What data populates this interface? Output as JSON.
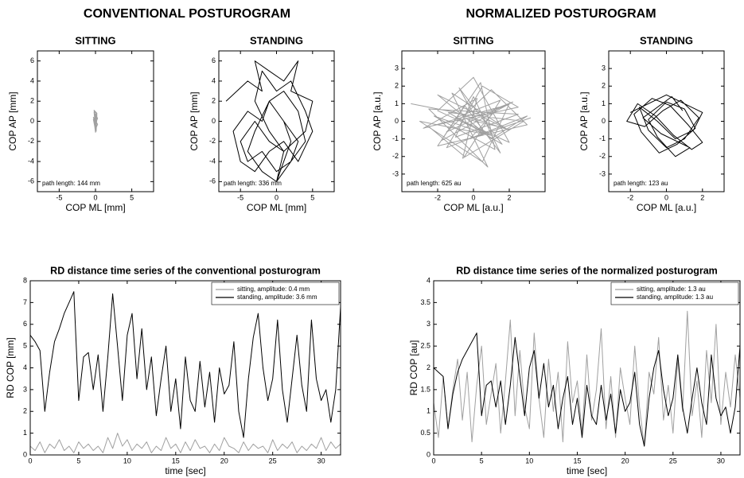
{
  "headers": [
    "CONVENTIONAL POSTUROGRAM",
    "NORMALIZED POSTUROGRAM"
  ],
  "chart_data": [
    {
      "type": "line",
      "title": "SITTING",
      "x_label": "COP ML [mm]",
      "y_label": "COP AP [mm]",
      "annotation": "path length: 144 mm",
      "color": "#a0a0a0",
      "x": [
        0,
        0.1,
        -0.1,
        0.2,
        -0.2,
        0.1,
        0,
        -0.3,
        0.2,
        0.1,
        -0.1,
        0.3,
        -0.2,
        0,
        0.1,
        -0.2,
        0.2,
        -0.1,
        0,
        0.3,
        -0.3,
        0.1,
        -0.1,
        0.2,
        0,
        -0.2,
        0.1,
        0,
        -0.1,
        0.2
      ],
      "values": [
        0,
        0.5,
        -0.3,
        0.8,
        1.1,
        -0.6,
        -0.9,
        0.2,
        0.6,
        -1.0,
        -0.4,
        0.3,
        0.9,
        -0.7,
        0.1,
        -0.2,
        0.7,
        1.0,
        -0.8,
        -0.3,
        0.4,
        -0.5,
        0.6,
        0.2,
        -1.1,
        0.0,
        0.8,
        -0.6,
        0.3,
        -0.1
      ],
      "xlim": [
        -8,
        8
      ],
      "xticks": [
        -5,
        0,
        5
      ],
      "ylim": [
        -7,
        7
      ],
      "yticks": [
        -6,
        -4,
        -2,
        0,
        2,
        4,
        6
      ]
    },
    {
      "type": "line",
      "title": "STANDING",
      "x_label": "COP ML [mm]",
      "y_label": "COP AP [mm]",
      "annotation": "path length: 336 mm",
      "color": "#000000",
      "x": [
        -7,
        -4,
        -2,
        -3,
        -1,
        1,
        3,
        2,
        5,
        4,
        1,
        -1,
        -3,
        -5,
        -4,
        -2,
        0,
        2,
        4,
        3,
        1,
        -1,
        -2,
        -4,
        -6,
        -5,
        -3,
        -1,
        1,
        3,
        5,
        4,
        2,
        0,
        -2,
        -3,
        -1,
        1,
        0,
        2,
        3,
        1,
        -1,
        -3,
        -4,
        -2,
        0,
        1,
        2,
        1
      ],
      "values": [
        2,
        4,
        3,
        6,
        5,
        4,
        6,
        3,
        2,
        -1,
        -3,
        -2,
        0,
        -2,
        -4,
        -3,
        -5,
        -4,
        -2,
        1,
        3,
        2,
        0,
        1,
        -1,
        -4,
        -5,
        -3,
        -2,
        -4,
        -1,
        1,
        4,
        3,
        5,
        2,
        -1,
        -3,
        -6,
        -4,
        -2,
        0,
        2,
        -1,
        -3,
        -5,
        -6,
        -4,
        -2,
        0
      ],
      "xlim": [
        -8,
        8
      ],
      "xticks": [
        -5,
        0,
        5
      ],
      "ylim": [
        -7,
        7
      ],
      "yticks": [
        -6,
        -4,
        -2,
        0,
        2,
        4,
        6
      ]
    },
    {
      "type": "line",
      "title": "SITTING",
      "x_label": "COP ML [a.u.]",
      "y_label": "COP AP [a.u.]",
      "annotation": "path length: 625 au",
      "color": "#a0a0a0",
      "x": [
        -3.5,
        -1,
        2,
        -2,
        1,
        3,
        -1.5,
        0.5,
        2.5,
        -2.5,
        -0.5,
        1.5,
        -1,
        2,
        0,
        -2,
        1,
        -3,
        0.5,
        2,
        -1.5,
        1,
        3,
        -2,
        -0.5,
        1.5,
        0,
        -1,
        2.5,
        -2.5,
        0.8,
        -1.2,
        1.8,
        -0.3,
        2.2,
        -1.8,
        0.4,
        1.2,
        -2.2,
        0.6,
        -0.8,
        1.6,
        -1.4,
        2.8,
        -0.6,
        0.2,
        -2.8,
        1.4,
        -0.2,
        3.2
      ],
      "values": [
        1,
        0.5,
        -0.5,
        1.5,
        -1,
        0.3,
        -1.5,
        2,
        0.8,
        -0.3,
        -2,
        1.2,
        0.2,
        -1.2,
        2.5,
        0.6,
        -0.8,
        0,
        -2.3,
        1,
        -0.6,
        1.8,
        -0.2,
        -1.4,
        0.9,
        -1.8,
        1.4,
        -0.9,
        0.4,
        0.7,
        -2.6,
        1.6,
        -0.4,
        0.1,
        1.1,
        -1.1,
        2.2,
        -1.6,
        0.3,
        -0.7,
        1.9,
        -1.3,
        0.5,
        0,
        -2.1,
        1.3,
        -0.4,
        0.8,
        -1,
        0.2
      ],
      "xlim": [
        -4,
        4
      ],
      "xticks": [
        -2,
        0,
        2
      ],
      "ylim": [
        -4,
        4
      ],
      "yticks": [
        -3,
        -2,
        -1,
        0,
        1,
        2,
        3
      ]
    },
    {
      "type": "line",
      "title": "STANDING",
      "x_label": "COP ML [a.u.]",
      "y_label": "COP AP [a.u.]",
      "annotation": "path length: 123 au",
      "color": "#000000",
      "x": [
        -2,
        -1,
        0,
        1,
        2,
        1.5,
        0.5,
        -0.5,
        -1.5,
        -1,
        0,
        1,
        1.8,
        0.8,
        -0.2,
        -1.2,
        -2.2,
        -1.6,
        -0.6,
        0.4,
        1.4,
        2,
        1.2,
        0.2,
        -0.8,
        -1.8,
        -1.4,
        -0.4,
        0.6,
        1.6,
        1,
        0,
        -1,
        -0.5,
        0.5,
        1.3,
        -0.3,
        -1.3,
        0.3,
        0.9
      ],
      "values": [
        0.5,
        1,
        1.5,
        1,
        0.5,
        -0.5,
        -1,
        0,
        0.8,
        -0.5,
        -1.5,
        -1,
        0.2,
        1.2,
        0.6,
        -0.3,
        0,
        1,
        0.3,
        -0.8,
        -1.6,
        -1.2,
        -0.2,
        0.9,
        1.3,
        0.4,
        -0.6,
        -1.8,
        -1.3,
        -0.4,
        0.7,
        1.1,
        0.1,
        -0.9,
        -2,
        -1.5,
        -0.7,
        0.2,
        1.4,
        0.6
      ],
      "xlim": [
        -3.2,
        3.2
      ],
      "xticks": [
        -2,
        0,
        2
      ],
      "ylim": [
        -4,
        4
      ],
      "yticks": [
        -3,
        -2,
        -1,
        0,
        1,
        2,
        3
      ]
    },
    {
      "type": "line",
      "title": "RD distance time series of the conventional posturogram",
      "x_label": "time [sec]",
      "y_label": "RD COP [mm]",
      "legend": "upper right",
      "x": [
        0,
        0.5,
        1,
        1.5,
        2,
        2.5,
        3,
        3.5,
        4,
        4.5,
        5,
        5.5,
        6,
        6.5,
        7,
        7.5,
        8,
        8.5,
        9,
        9.5,
        10,
        10.5,
        11,
        11.5,
        12,
        12.5,
        13,
        13.5,
        14,
        14.5,
        15,
        15.5,
        16,
        16.5,
        17,
        17.5,
        18,
        18.5,
        19,
        19.5,
        20,
        20.5,
        21,
        21.5,
        22,
        22.5,
        23,
        23.5,
        24,
        24.5,
        25,
        25.5,
        26,
        26.5,
        27,
        27.5,
        28,
        28.5,
        29,
        29.5,
        30,
        30.5,
        31,
        31.5,
        32
      ],
      "series": [
        {
          "name": "sitting, amplitude: 0.4 mm",
          "color": "#a0a0a0",
          "values": [
            0.4,
            0.2,
            0.6,
            0.1,
            0.5,
            0.3,
            0.7,
            0.2,
            0.4,
            0.1,
            0.6,
            0.3,
            0.5,
            0.2,
            0.4,
            0.1,
            0.8,
            0.3,
            1,
            0.4,
            0.7,
            0.2,
            0.5,
            0.3,
            0.6,
            0.1,
            0.4,
            0.2,
            0.8,
            0.3,
            0.5,
            0.1,
            0.6,
            0.2,
            0.7,
            0.3,
            0.4,
            0.1,
            0.5,
            0.2,
            0.8,
            0.4,
            0.3,
            0.1,
            0.6,
            0.2,
            0.5,
            0.3,
            0.4,
            0.1,
            0.7,
            0.2,
            0.5,
            0.3,
            0.6,
            0.1,
            0.4,
            0.2,
            0.5,
            0.3,
            0.8,
            0.2,
            0.6,
            0.3,
            0.5
          ]
        },
        {
          "name": "standing, amplitude: 3.6 mm",
          "color": "#000000",
          "values": [
            5.5,
            5.2,
            4.8,
            2,
            3.8,
            5.2,
            5.8,
            6.5,
            7,
            7.5,
            2.5,
            4.5,
            4.7,
            3,
            4.6,
            2,
            4.5,
            7.4,
            5,
            2.5,
            5.5,
            6.5,
            3.5,
            5.8,
            3,
            4.5,
            1.8,
            3.5,
            5,
            2,
            3.5,
            1.2,
            4.5,
            2.5,
            2,
            4.3,
            2.2,
            3.8,
            1.5,
            4,
            2.8,
            3.2,
            5.2,
            2,
            0.8,
            3.5,
            5.4,
            6.5,
            4,
            2.5,
            3.5,
            6.2,
            3,
            1.5,
            3.5,
            5.5,
            3.2,
            2,
            6.2,
            3.5,
            2.5,
            3,
            1.5,
            3,
            6.8
          ]
        }
      ],
      "xlim": [
        0,
        32
      ],
      "xticks": [
        0,
        5,
        10,
        15,
        20,
        25,
        30
      ],
      "ylim": [
        0,
        8
      ],
      "yticks": [
        0,
        1,
        2,
        3,
        4,
        5,
        6,
        7,
        8
      ]
    },
    {
      "type": "line",
      "title": "RD distance time series of the normalized posturogram",
      "x_label": "time [sec]",
      "y_label": "RD COP [au]",
      "legend": "upper right",
      "x": [
        0,
        0.5,
        1,
        1.5,
        2,
        2.5,
        3,
        3.5,
        4,
        4.5,
        5,
        5.5,
        6,
        6.5,
        7,
        7.5,
        8,
        8.5,
        9,
        9.5,
        10,
        10.5,
        11,
        11.5,
        12,
        12.5,
        13,
        13.5,
        14,
        14.5,
        15,
        15.5,
        16,
        16.5,
        17,
        17.5,
        18,
        18.5,
        19,
        19.5,
        20,
        20.5,
        21,
        21.5,
        22,
        22.5,
        23,
        23.5,
        24,
        24.5,
        25,
        25.5,
        26,
        26.5,
        27,
        27.5,
        28,
        28.5,
        29,
        29.5,
        30,
        30.5,
        31,
        31.5,
        32
      ],
      "series": [
        {
          "name": "sitting, amplitude: 1.3 au",
          "color": "#a0a0a0",
          "values": [
            1.2,
            0.4,
            1.8,
            0.6,
            1.5,
            2.2,
            0.8,
            1.9,
            0.3,
            1.6,
            2.5,
            0.7,
            1.4,
            2.1,
            0.5,
            1.7,
            3.1,
            0.9,
            2.4,
            1.1,
            0.6,
            2.8,
            1.3,
            0.4,
            2.2,
            1,
            1.9,
            0.3,
            2.6,
            1.2,
            1.7,
            0.5,
            2.3,
            0.8,
            1.5,
            2.9,
            0.6,
            1.8,
            0.4,
            2,
            1.3,
            0.7,
            2.5,
            1.1,
            0.2,
            1.9,
            1.4,
            2.7,
            0.8,
            1.6,
            0.5,
            2.2,
            1,
            3.3,
            0.9,
            1.7,
            0.4,
            2.4,
            1.2,
            3,
            0.7,
            1.9,
            1.1,
            2.3,
            1.3
          ]
        },
        {
          "name": "standing, amplitude: 1.3 au",
          "color": "#000000",
          "values": [
            2,
            1.9,
            1.8,
            0.6,
            1.4,
            1.9,
            2.2,
            2.4,
            2.6,
            2.8,
            0.9,
            1.6,
            1.7,
            1.1,
            1.7,
            0.7,
            1.6,
            2.7,
            1.8,
            0.9,
            2,
            2.4,
            1.3,
            2.1,
            1.1,
            1.6,
            0.6,
            1.3,
            1.8,
            0.7,
            1.3,
            0.4,
            1.6,
            0.9,
            0.7,
            1.6,
            0.8,
            1.4,
            0.5,
            1.5,
            1,
            1.2,
            1.9,
            0.7,
            0.2,
            1.3,
            2,
            2.4,
            1.5,
            0.9,
            1.3,
            2.3,
            1.1,
            0.5,
            1.3,
            2,
            1.2,
            0.7,
            2.3,
            1.3,
            0.9,
            1.1,
            0.5,
            1.1,
            2.5
          ]
        }
      ],
      "xlim": [
        0,
        32
      ],
      "xticks": [
        0,
        5,
        10,
        15,
        20,
        25,
        30
      ],
      "ylim": [
        0,
        4
      ],
      "yticks": [
        0,
        0.5,
        1,
        1.5,
        2,
        2.5,
        3,
        3.5,
        4
      ]
    }
  ]
}
